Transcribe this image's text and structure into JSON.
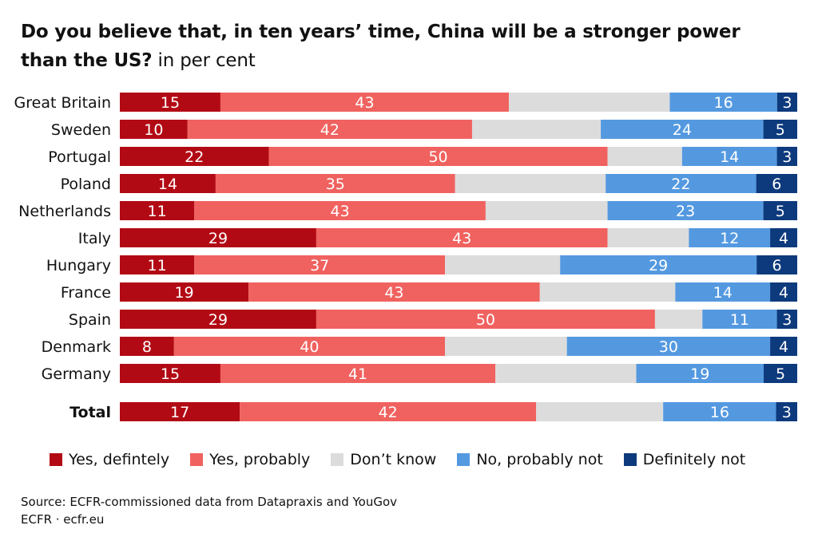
{
  "title": {
    "bold": "Do you believe that, in ten years’ time, China will be a stronger power than the US?",
    "light": " in per cent"
  },
  "legend": [
    {
      "label": "Yes, defintely",
      "color": "#b20a14"
    },
    {
      "label": "Yes, probably",
      "color": "#f0625f"
    },
    {
      "label": "Don’t know",
      "color": "#dcdcdc"
    },
    {
      "label": "No, probably not",
      "color": "#5499e0"
    },
    {
      "label": "Definitely not",
      "color": "#0d3a7d"
    }
  ],
  "source": {
    "line1": "Source: ECFR-commissioned data from Datapraxis and YouGov",
    "line2": "ECFR · ecfr.eu"
  },
  "chart_data": {
    "type": "bar",
    "orientation": "horizontal",
    "stacked": true,
    "categories": [
      "Great Britain",
      "Sweden",
      "Portugal",
      "Poland",
      "Netherlands",
      "Italy",
      "Hungary",
      "France",
      "Spain",
      "Denmark",
      "Germany",
      "Total"
    ],
    "series": [
      {
        "name": "Yes, defintely",
        "color": "#b20a14",
        "labels": true,
        "values": [
          15,
          10,
          22,
          14,
          11,
          29,
          11,
          19,
          29,
          8,
          15,
          17
        ]
      },
      {
        "name": "Yes, probably",
        "color": "#f0625f",
        "labels": true,
        "values": [
          43,
          42,
          50,
          35,
          43,
          43,
          37,
          43,
          50,
          40,
          41,
          42
        ]
      },
      {
        "name": "Don’t know",
        "color": "#dcdcdc",
        "labels": false,
        "values": [
          24,
          19,
          11,
          22,
          18,
          12,
          17,
          20,
          7,
          18,
          21,
          18
        ]
      },
      {
        "name": "No, probably not",
        "color": "#5499e0",
        "labels": true,
        "values": [
          16,
          24,
          14,
          22,
          23,
          12,
          29,
          14,
          11,
          30,
          19,
          16
        ]
      },
      {
        "name": "Definitely not",
        "color": "#0d3a7d",
        "labels": true,
        "values": [
          3,
          5,
          3,
          6,
          5,
          4,
          6,
          4,
          3,
          4,
          5,
          3
        ]
      }
    ],
    "bold_categories": [
      "Total"
    ],
    "xlim": [
      0,
      100
    ],
    "grid": false
  }
}
